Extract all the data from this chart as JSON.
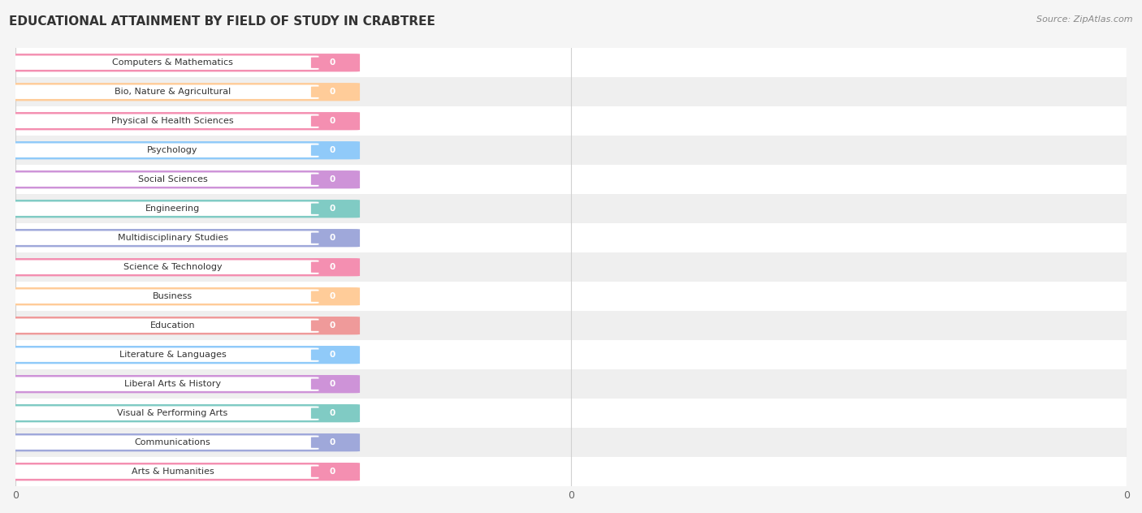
{
  "title": "EDUCATIONAL ATTAINMENT BY FIELD OF STUDY IN CRABTREE",
  "source": "Source: ZipAtlas.com",
  "categories": [
    "Computers & Mathematics",
    "Bio, Nature & Agricultural",
    "Physical & Health Sciences",
    "Psychology",
    "Social Sciences",
    "Engineering",
    "Multidisciplinary Studies",
    "Science & Technology",
    "Business",
    "Education",
    "Literature & Languages",
    "Liberal Arts & History",
    "Visual & Performing Arts",
    "Communications",
    "Arts & Humanities"
  ],
  "values": [
    0,
    0,
    0,
    0,
    0,
    0,
    0,
    0,
    0,
    0,
    0,
    0,
    0,
    0,
    0
  ],
  "bar_colors": [
    "#F48FB1",
    "#FFCC99",
    "#F48FB1",
    "#90CAF9",
    "#CE93D8",
    "#80CBC4",
    "#9FA8DA",
    "#F48FB1",
    "#FFCC99",
    "#EF9A9A",
    "#90CAF9",
    "#CE93D8",
    "#80CBC4",
    "#9FA8DA",
    "#F48FB1"
  ],
  "background_color": "#f5f5f5",
  "row_colors": [
    "#ffffff",
    "#efefef"
  ],
  "grid_color": "#d0d0d0",
  "title_fontsize": 11,
  "label_fontsize": 8,
  "value_fontsize": 7.5,
  "source_fontsize": 8
}
